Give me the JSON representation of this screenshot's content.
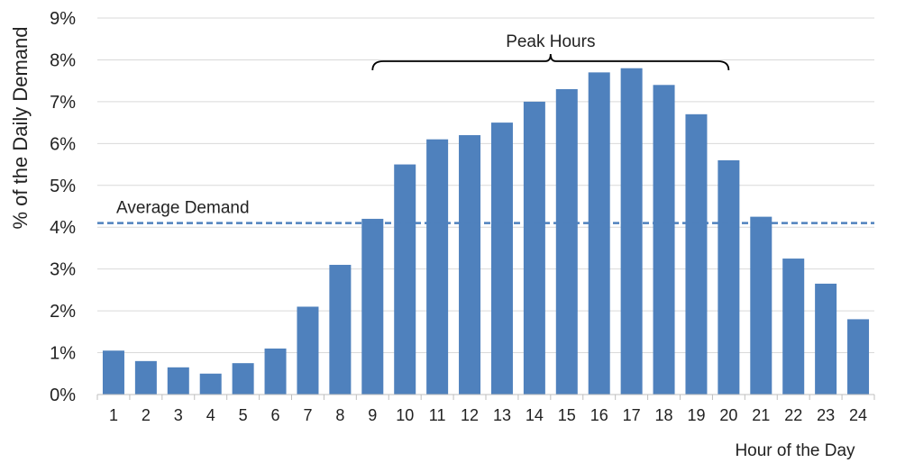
{
  "chart_data": {
    "type": "bar",
    "title": "",
    "xlabel": "Hour of the Day",
    "ylabel": "% of the Daily Demand",
    "categories": [
      "1",
      "2",
      "3",
      "4",
      "5",
      "6",
      "7",
      "8",
      "9",
      "10",
      "11",
      "12",
      "13",
      "14",
      "15",
      "16",
      "17",
      "18",
      "19",
      "20",
      "21",
      "22",
      "23",
      "24"
    ],
    "values": [
      1.05,
      0.8,
      0.65,
      0.5,
      0.75,
      1.1,
      2.1,
      3.1,
      4.2,
      5.5,
      6.1,
      6.2,
      6.5,
      7.0,
      7.3,
      7.7,
      7.8,
      7.4,
      6.7,
      5.6,
      4.25,
      3.25,
      2.65,
      1.8
    ],
    "ylim": [
      0,
      9
    ],
    "yticks": [
      {
        "value": 0,
        "label": "0%"
      },
      {
        "value": 1,
        "label": "1%"
      },
      {
        "value": 2,
        "label": "2%"
      },
      {
        "value": 3,
        "label": "3%"
      },
      {
        "value": 4,
        "label": "4%"
      },
      {
        "value": 5,
        "label": "5%"
      },
      {
        "value": 6,
        "label": "6%"
      },
      {
        "value": 7,
        "label": "7%"
      },
      {
        "value": 8,
        "label": "8%"
      },
      {
        "value": 9,
        "label": "9%"
      }
    ],
    "grid": true,
    "bar_color": "#4f81bd",
    "grid_color": "#d9d9d9",
    "reference_line": {
      "label": "Average Demand",
      "value": 4.1,
      "style": "dashed",
      "color": "#4f81bd"
    },
    "annotation": {
      "label": "Peak Hours",
      "from_category": "9",
      "to_category": "20"
    }
  }
}
